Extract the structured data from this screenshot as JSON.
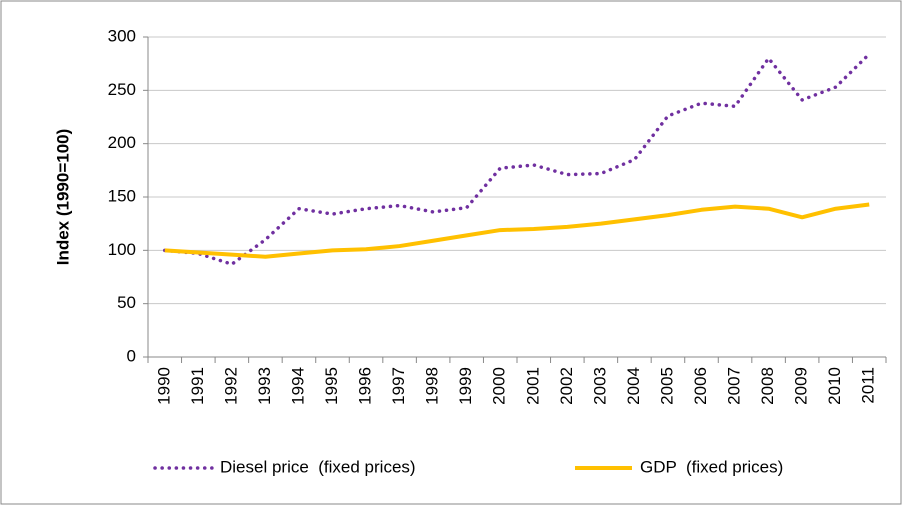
{
  "chart_data": {
    "type": "line",
    "y_label": "Index (1990=100)",
    "categories": [
      "1990",
      "1991",
      "1992",
      "1993",
      "1994",
      "1995",
      "1996",
      "1997",
      "1998",
      "1999",
      "2000",
      "2001",
      "2002",
      "2003",
      "2004",
      "2005",
      "2006",
      "2007",
      "2008",
      "2009",
      "2010",
      "2011"
    ],
    "series": [
      {
        "name": "Diesel price  (fixed prices)",
        "color": "#7030a0",
        "style": "dotted",
        "values": [
          100,
          97,
          87,
          110,
          139,
          134,
          139,
          142,
          136,
          140,
          177,
          180,
          171,
          172,
          185,
          226,
          238,
          235,
          280,
          241,
          253,
          284
        ]
      },
      {
        "name": "GDP  (fixed prices)",
        "color": "#ffc000",
        "style": "solid",
        "values": [
          100,
          98,
          96,
          94,
          97,
          100,
          101,
          104,
          109,
          114,
          119,
          120,
          122,
          125,
          129,
          133,
          138,
          141,
          139,
          131,
          139,
          143
        ]
      }
    ],
    "ylim": [
      0,
      300
    ],
    "yticks": [
      0,
      50,
      100,
      150,
      200,
      250,
      300
    ],
    "grid": true,
    "legend": "bottom"
  }
}
